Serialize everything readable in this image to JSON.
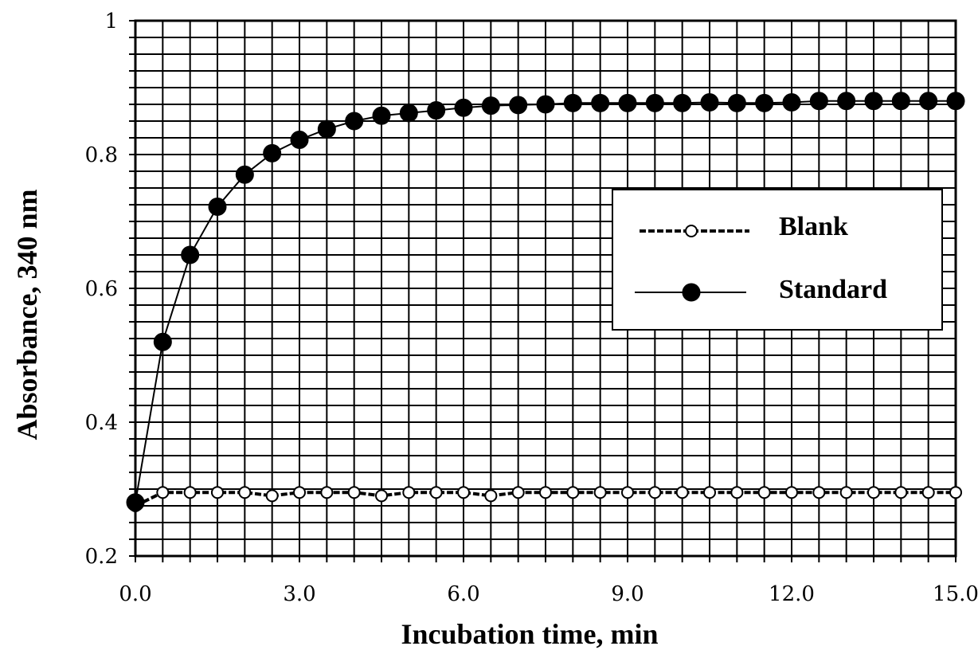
{
  "chart_data": {
    "type": "line",
    "xlabel": "Incubation time, min",
    "ylabel": "Absorbance, 340 nm",
    "xlim": [
      0,
      15
    ],
    "ylim": [
      0.2,
      1
    ],
    "x_ticks": [
      "0.0",
      "3.0",
      "6.0",
      "9.0",
      "12.0",
      "15.0"
    ],
    "y_ticks": [
      "0.2",
      "0.4",
      "0.6",
      "0.8",
      "1"
    ],
    "grid": true,
    "legend_position": "right",
    "series": [
      {
        "name": "Blank",
        "marker": "open-circle",
        "x": [
          0,
          0.5,
          1.0,
          1.5,
          2.0,
          2.5,
          3.0,
          3.5,
          4.0,
          4.5,
          5.0,
          5.5,
          6.0,
          6.5,
          7.0,
          7.5,
          8.0,
          8.5,
          9.0,
          9.5,
          10.0,
          10.5,
          11.0,
          11.5,
          12.0,
          12.5,
          13.0,
          13.5,
          14.0,
          14.5,
          15.0
        ],
        "values": [
          0.275,
          0.295,
          0.295,
          0.295,
          0.295,
          0.29,
          0.295,
          0.295,
          0.295,
          0.29,
          0.295,
          0.295,
          0.295,
          0.29,
          0.295,
          0.295,
          0.295,
          0.295,
          0.295,
          0.295,
          0.295,
          0.295,
          0.295,
          0.295,
          0.295,
          0.295,
          0.295,
          0.295,
          0.295,
          0.295,
          0.295
        ]
      },
      {
        "name": "Standard",
        "marker": "filled-circle",
        "x": [
          0,
          0.5,
          1.0,
          1.5,
          2.0,
          2.5,
          3.0,
          3.5,
          4.0,
          4.5,
          5.0,
          5.5,
          6.0,
          6.5,
          7.0,
          7.5,
          8.0,
          8.5,
          9.0,
          9.5,
          10.0,
          10.5,
          11.0,
          11.5,
          12.0,
          12.5,
          13.0,
          13.5,
          14.0,
          14.5,
          15.0
        ],
        "values": [
          0.28,
          0.52,
          0.65,
          0.722,
          0.77,
          0.802,
          0.822,
          0.838,
          0.85,
          0.858,
          0.862,
          0.866,
          0.87,
          0.873,
          0.874,
          0.875,
          0.877,
          0.877,
          0.877,
          0.877,
          0.877,
          0.878,
          0.877,
          0.877,
          0.878,
          0.88,
          0.88,
          0.88,
          0.88,
          0.88,
          0.88
        ]
      }
    ]
  }
}
